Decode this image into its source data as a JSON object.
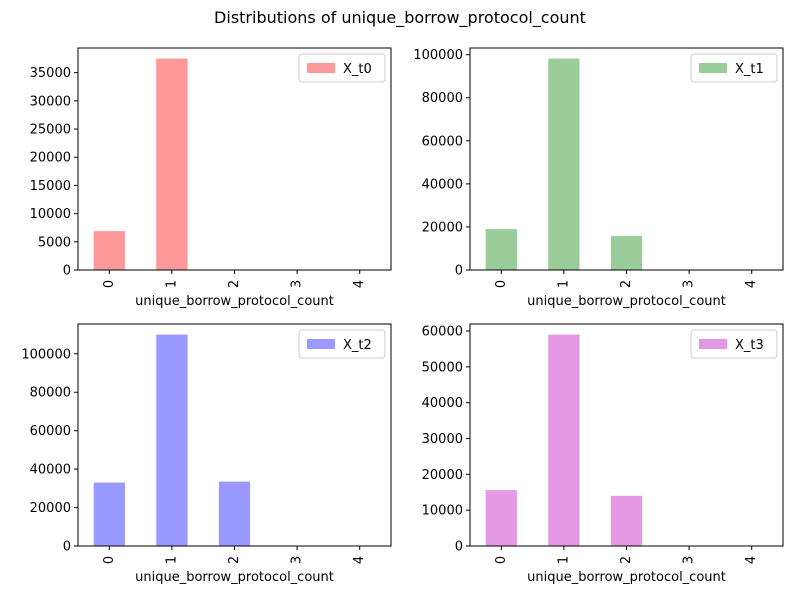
{
  "figure": {
    "title": "Distributions of unique_borrow_protocol_count"
  },
  "chart_data": [
    {
      "type": "bar",
      "categories": [
        "0",
        "1",
        "2",
        "3",
        "4"
      ],
      "series": [
        {
          "name": "X_t0",
          "values": [
            6900,
            37500,
            0,
            0,
            0
          ],
          "color": "#ff9999"
        }
      ],
      "xlabel": "unique_borrow_protocol_count",
      "ylabel": "",
      "ylim": [
        0,
        39375
      ],
      "yticks": [
        0,
        5000,
        10000,
        15000,
        20000,
        25000,
        30000,
        35000
      ],
      "legend": "top-right",
      "grid": false
    },
    {
      "type": "bar",
      "categories": [
        "0",
        "1",
        "2",
        "3",
        "4"
      ],
      "series": [
        {
          "name": "X_t1",
          "values": [
            19000,
            98200,
            15800,
            0,
            0
          ],
          "color": "#99cc99"
        }
      ],
      "xlabel": "unique_borrow_protocol_count",
      "ylabel": "",
      "ylim": [
        0,
        103100
      ],
      "yticks": [
        0,
        20000,
        40000,
        60000,
        80000,
        100000
      ],
      "legend": "top-right",
      "grid": false
    },
    {
      "type": "bar",
      "categories": [
        "0",
        "1",
        "2",
        "3",
        "4"
      ],
      "series": [
        {
          "name": "X_t2",
          "values": [
            33000,
            110000,
            33500,
            0,
            0
          ],
          "color": "#9999ff"
        }
      ],
      "xlabel": "unique_borrow_protocol_count",
      "ylabel": "",
      "ylim": [
        0,
        115500
      ],
      "yticks": [
        0,
        20000,
        40000,
        60000,
        80000,
        100000
      ],
      "legend": "top-right",
      "grid": false
    },
    {
      "type": "bar",
      "categories": [
        "0",
        "1",
        "2",
        "3",
        "4"
      ],
      "series": [
        {
          "name": "X_t3",
          "values": [
            15600,
            59000,
            14000,
            0,
            0
          ],
          "color": "#e599e5"
        }
      ],
      "xlabel": "unique_borrow_protocol_count",
      "ylabel": "",
      "ylim": [
        0,
        61950
      ],
      "yticks": [
        0,
        10000,
        20000,
        30000,
        40000,
        50000,
        60000
      ],
      "legend": "top-right",
      "grid": false
    }
  ]
}
